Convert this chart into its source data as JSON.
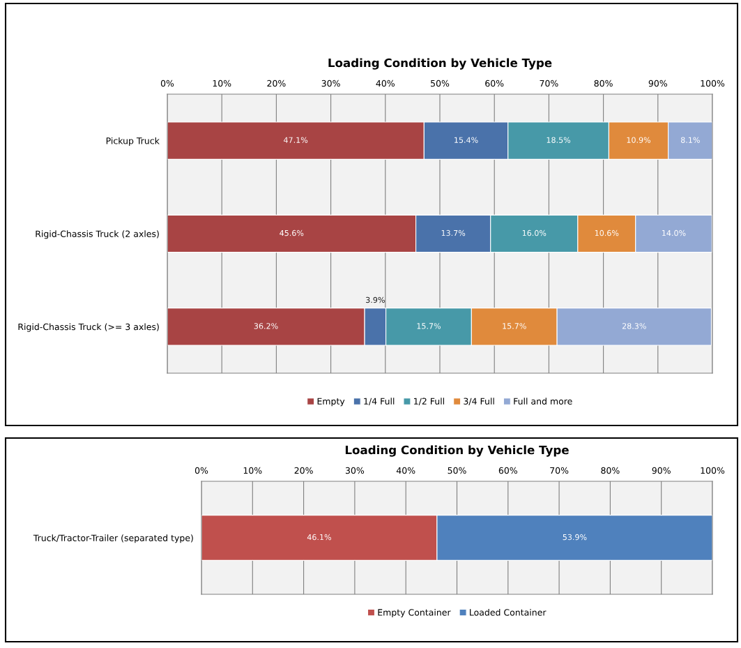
{
  "chart_data": [
    {
      "type": "bar",
      "orientation": "horizontal",
      "stacked": true,
      "title": "Loading Condition by Vehicle Type",
      "categories": [
        "Pickup Truck",
        "Rigid-Chassis Truck (2 axles)",
        "Rigid-Chassis Truck (>= 3 axles)"
      ],
      "series": [
        {
          "name": "Empty",
          "color": "#a84444",
          "values": [
            47.1,
            45.6,
            36.2
          ]
        },
        {
          "name": "1/4 Full",
          "color": "#4a72aa",
          "values": [
            15.4,
            13.7,
            3.9
          ]
        },
        {
          "name": "1/2 Full",
          "color": "#4799a8",
          "values": [
            18.5,
            16.0,
            15.7
          ]
        },
        {
          "name": "3/4 Full",
          "color": "#e08a3c",
          "values": [
            10.9,
            10.6,
            15.7
          ]
        },
        {
          "name": "Full and more",
          "color": "#93a9d4",
          "values": [
            8.1,
            14.0,
            28.3
          ]
        }
      ],
      "xlim": [
        0,
        100
      ],
      "xticks": [
        {
          "value": 0,
          "label": "0%"
        },
        {
          "value": 10,
          "label": "10%"
        },
        {
          "value": 20,
          "label": "20%"
        },
        {
          "value": 30,
          "label": "30%"
        },
        {
          "value": 40,
          "label": "40%"
        },
        {
          "value": 50,
          "label": "50%"
        },
        {
          "value": 60,
          "label": "60%"
        },
        {
          "value": 70,
          "label": "70%"
        },
        {
          "value": 80,
          "label": "80%"
        },
        {
          "value": 90,
          "label": "90%"
        },
        {
          "value": 100,
          "label": "100%"
        }
      ],
      "value_labels": [
        [
          "47.1%",
          "45.6%",
          "36.2%"
        ],
        [
          "15.4%",
          "13.7%",
          "3.9%"
        ],
        [
          "18.5%",
          "16.0%",
          "15.7%"
        ],
        [
          "10.9%",
          "10.6%",
          "15.7%"
        ],
        [
          "8.1%",
          "14.0%",
          "28.3%"
        ]
      ],
      "grid": "x",
      "legend": "bottom"
    },
    {
      "type": "bar",
      "orientation": "horizontal",
      "stacked": true,
      "title": "Loading Condition by Vehicle Type",
      "categories": [
        "Truck/Tractor-Trailer (separated type)"
      ],
      "series": [
        {
          "name": "Empty Container",
          "color": "#c0504d",
          "values": [
            46.1
          ]
        },
        {
          "name": "Loaded Container",
          "color": "#4f81bd",
          "values": [
            53.9
          ]
        }
      ],
      "xlim": [
        0,
        100
      ],
      "xticks": [
        {
          "value": 0,
          "label": "0%"
        },
        {
          "value": 10,
          "label": "10%"
        },
        {
          "value": 20,
          "label": "20%"
        },
        {
          "value": 30,
          "label": "30%"
        },
        {
          "value": 40,
          "label": "40%"
        },
        {
          "value": 50,
          "label": "50%"
        },
        {
          "value": 60,
          "label": "60%"
        },
        {
          "value": 70,
          "label": "70%"
        },
        {
          "value": 80,
          "label": "80%"
        },
        {
          "value": 90,
          "label": "90%"
        },
        {
          "value": 100,
          "label": "100%"
        }
      ],
      "value_labels": [
        [
          "46.1%"
        ],
        [
          "53.9%"
        ]
      ],
      "grid": "x",
      "legend": "bottom"
    }
  ]
}
